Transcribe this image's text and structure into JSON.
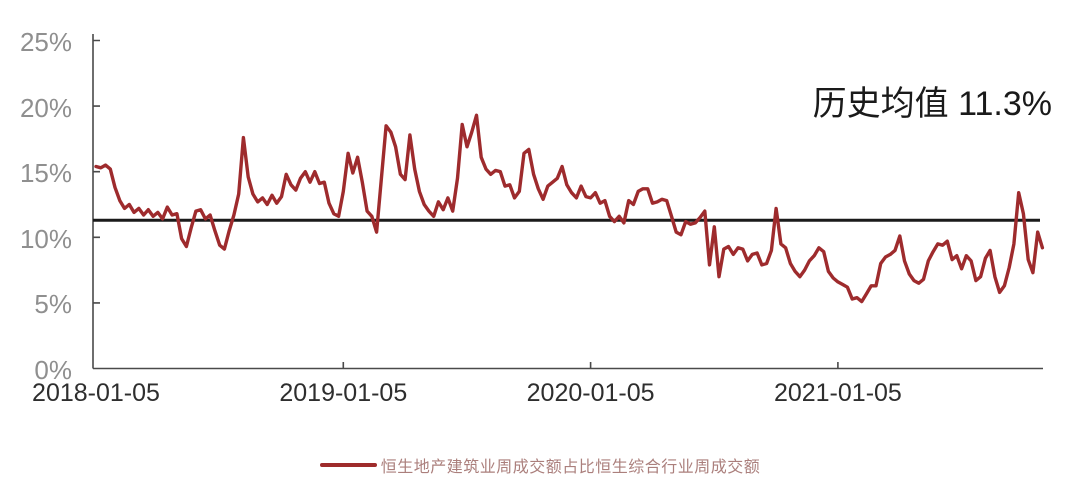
{
  "chart_data": {
    "type": "line",
    "title": "",
    "xlabel": "",
    "ylabel": "",
    "grid": false,
    "background": "#ffffff",
    "ylim": [
      0,
      25
    ],
    "y_tick_labels": [
      "0%",
      "5%",
      "10%",
      "15%",
      "20%",
      "25%"
    ],
    "x_tick_labels": [
      "2018-01-05",
      "2019-01-05",
      "2020-01-05",
      "2021-01-05"
    ],
    "x_frequency": "weekly",
    "legend_position": "bottom-center",
    "mean_line": {
      "value": 11.3,
      "label": "历史均值 11.3%",
      "color": "#1a1a1a"
    },
    "series": [
      {
        "name": "恒生地产建筑业周成交额占比恒生综合行业周成交额",
        "color": "#9E2B2D",
        "unit": "%",
        "start": "2018-01-05",
        "values": [
          15.4,
          15.3,
          15.5,
          15.2,
          13.8,
          12.8,
          12.2,
          12.5,
          11.9,
          12.2,
          11.7,
          12.1,
          11.6,
          11.9,
          11.4,
          12.3,
          11.7,
          11.8,
          9.9,
          9.3,
          10.7,
          12.0,
          12.1,
          11.4,
          11.7,
          10.5,
          9.4,
          9.1,
          10.5,
          11.7,
          13.3,
          17.6,
          14.6,
          13.3,
          12.7,
          13.0,
          12.5,
          13.2,
          12.6,
          13.1,
          14.8,
          14.0,
          13.6,
          14.5,
          15.0,
          14.2,
          15.0,
          14.1,
          14.2,
          12.6,
          11.8,
          11.6,
          13.5,
          16.4,
          14.9,
          16.1,
          14.2,
          12.0,
          11.6,
          10.4,
          14.5,
          18.5,
          18.0,
          16.9,
          14.8,
          14.4,
          17.8,
          15.2,
          13.5,
          12.5,
          12.0,
          11.6,
          12.7,
          12.1,
          13.0,
          12.0,
          14.5,
          18.6,
          16.9,
          18.0,
          19.3,
          16.1,
          15.2,
          14.8,
          15.1,
          15.0,
          13.9,
          14.0,
          13.0,
          13.5,
          16.4,
          16.7,
          14.8,
          13.7,
          12.9,
          13.9,
          14.2,
          14.5,
          15.4,
          14.0,
          13.4,
          13.0,
          13.9,
          13.1,
          13.0,
          13.4,
          12.6,
          12.8,
          11.6,
          11.2,
          11.6,
          11.1,
          12.8,
          12.5,
          13.5,
          13.7,
          13.7,
          12.6,
          12.7,
          12.9,
          12.8,
          11.6,
          10.4,
          10.2,
          11.2,
          11.0,
          11.1,
          11.5,
          12.0,
          7.9,
          10.8,
          7.0,
          9.1,
          9.3,
          8.7,
          9.2,
          9.1,
          8.2,
          8.7,
          8.8,
          7.9,
          8.0,
          9.0,
          12.2,
          9.5,
          9.2,
          8.0,
          7.4,
          7.0,
          7.5,
          8.2,
          8.6,
          9.2,
          8.9,
          7.4,
          6.9,
          6.6,
          6.4,
          6.2,
          5.3,
          5.4,
          5.1,
          5.7,
          6.3,
          6.3,
          8.0,
          8.5,
          8.7,
          9.0,
          10.1,
          8.2,
          7.2,
          6.7,
          6.5,
          6.8,
          8.2,
          8.9,
          9.5,
          9.4,
          9.7,
          8.3,
          8.6,
          7.6,
          8.6,
          8.2,
          6.7,
          7.0,
          8.4,
          9.0,
          7.0,
          5.8,
          6.3,
          7.7,
          9.5,
          13.4,
          11.8,
          8.3,
          7.3,
          10.4,
          9.2
        ]
      }
    ]
  },
  "annotation": {
    "text": "历史均值 11.3%"
  },
  "legend": {
    "label": "恒生地产建筑业周成交额占比恒生综合行业周成交额"
  },
  "axis_colors": {
    "axis": "#4a4a4a",
    "y_labels": "#8f8f8f",
    "x_labels": "#2e2e2e"
  }
}
